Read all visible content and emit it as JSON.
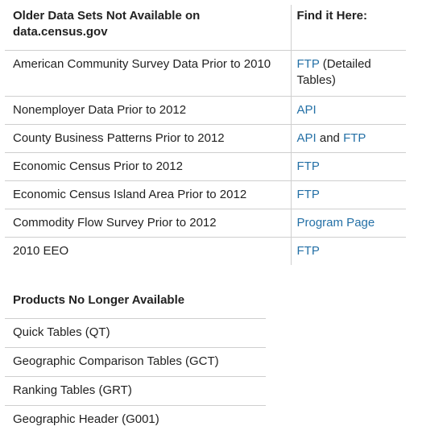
{
  "table1": {
    "headers": {
      "col1": "Older Data Sets Not Available on data.census.gov",
      "col2": "Find it Here:"
    },
    "rows": [
      {
        "dataset": "American Community Survey Data Prior to 2010",
        "link1": "FTP",
        "sep": " (Detailed Tables)",
        "link2": ""
      },
      {
        "dataset": "Nonemployer Data Prior to 2012",
        "link1": "API",
        "sep": "",
        "link2": ""
      },
      {
        "dataset": "County Business Patterns Prior to 2012",
        "link1": "API",
        "sep": " and ",
        "link2": "FTP"
      },
      {
        "dataset": "Economic Census Prior to 2012",
        "link1": "FTP",
        "sep": "",
        "link2": ""
      },
      {
        "dataset": "Economic Census Island Area Prior to 2012",
        "link1": "FTP",
        "sep": "",
        "link2": ""
      },
      {
        "dataset": "Commodity Flow Survey Prior to 2012",
        "link1": "Program Page",
        "sep": "",
        "link2": ""
      },
      {
        "dataset": "2010 EEO",
        "link1": "FTP",
        "sep": "",
        "link2": ""
      }
    ]
  },
  "table2": {
    "header": "Products No Longer Available",
    "rows": [
      "Quick Tables (QT)",
      "Geographic Comparison Tables (GCT)",
      "Ranking Tables (GRT)",
      "Geographic Header (G001)"
    ]
  },
  "colors": {
    "link": "#2470a6",
    "text": "#222222",
    "border": "#cfcfcf"
  }
}
